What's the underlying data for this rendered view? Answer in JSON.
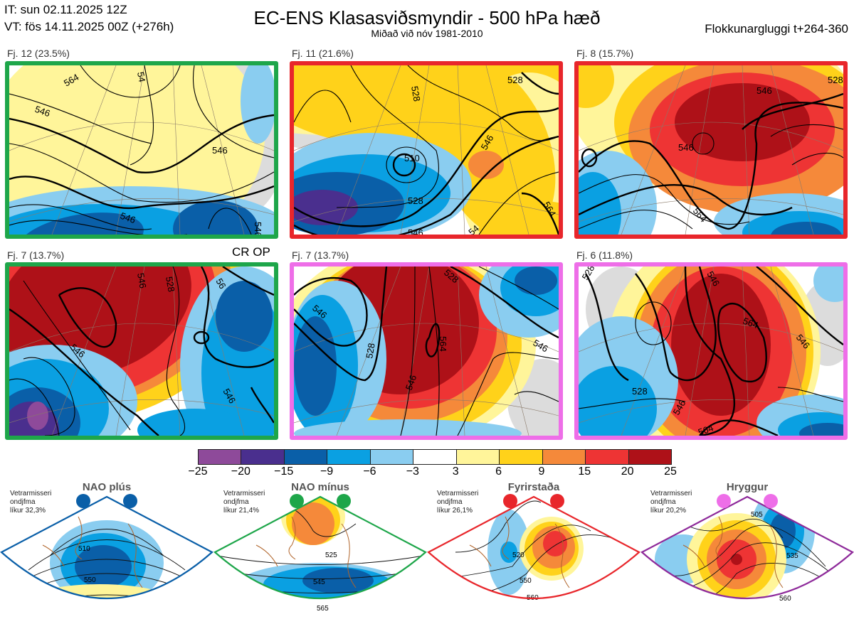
{
  "header": {
    "initial_time": "IT: sun 02.11.2025 12Z",
    "valid_time": "VT: fös 14.11.2025 00Z  (+276h)",
    "title": "EC-ENS Klasasviðsmyndir - 500 hPa hæð",
    "subtitle": "Miðað við nóv 1981-2010",
    "cluster_window": "Flokkunargluggi t+264-360"
  },
  "panels": [
    {
      "label": "Fj. 12 (23.5%)",
      "border_color": "#1ea64a",
      "contours": [
        "564",
        "546",
        "546",
        "546",
        "546",
        "54"
      ]
    },
    {
      "label": "Fj. 11 (21.6%)",
      "border_color": "#e8262b",
      "contours": [
        "528",
        "528",
        "510",
        "546",
        "528",
        "546",
        "564",
        "54"
      ]
    },
    {
      "label": "Fj. 8 (15.7%)",
      "border_color": "#e8262b",
      "contours": [
        "546",
        "528",
        "546",
        "564"
      ]
    },
    {
      "label": "Fj. 7 (13.7%)",
      "border_color": "#1ea64a",
      "tag": "CR OP",
      "contours": [
        "546",
        "546",
        "56",
        "528",
        "546"
      ]
    },
    {
      "label": "Fj. 7 (13.7%)",
      "border_color": "#ee6ee8",
      "contours": [
        "546",
        "528",
        "564",
        "528",
        "546",
        "546"
      ]
    },
    {
      "label": "Fj. 6 (11.8%)",
      "border_color": "#ee6ee8",
      "contours": [
        "528",
        "546",
        "564",
        "546",
        "528",
        "546",
        "564"
      ]
    }
  ],
  "legend": {
    "ticks": [
      "−25",
      "−20",
      "−15",
      "−9",
      "−6",
      "−3",
      "3",
      "6",
      "9",
      "15",
      "20",
      "25"
    ],
    "colors": [
      "#8e4a9a",
      "#4a2f8e",
      "#0a5fa8",
      "#0aa0e2",
      "#8acdf0",
      "#ffffff",
      "#fff59a",
      "#ffd21a",
      "#f5893a",
      "#ee3434",
      "#ae1118"
    ]
  },
  "regimes": [
    {
      "name": "NAO plús",
      "info": [
        "Vetrarmisseri",
        "ondjfma",
        "líkur 32,3%"
      ],
      "color": "#0a5fa8",
      "labels": [
        "510",
        "550"
      ]
    },
    {
      "name": "NAO mínus",
      "info": [
        "Vetrarmisseri",
        "ondjfma",
        "líkur 21,4%"
      ],
      "color": "#1ea64a",
      "labels": [
        "525",
        "545",
        "565"
      ]
    },
    {
      "name": "Fyrirstaða",
      "info": [
        "Vetrarmisseri",
        "ondjfma",
        "líkur 26,1%"
      ],
      "color": "#e8262b",
      "labels": [
        "520",
        "550",
        "560"
      ]
    },
    {
      "name": "Hryggur",
      "info": [
        "Vetrarmisseri",
        "ondjfma",
        "líkur 20,2%"
      ],
      "color": "#8e2a9a",
      "dot_color": "#ee6ee8",
      "labels": [
        "505",
        "535",
        "560"
      ]
    }
  ]
}
